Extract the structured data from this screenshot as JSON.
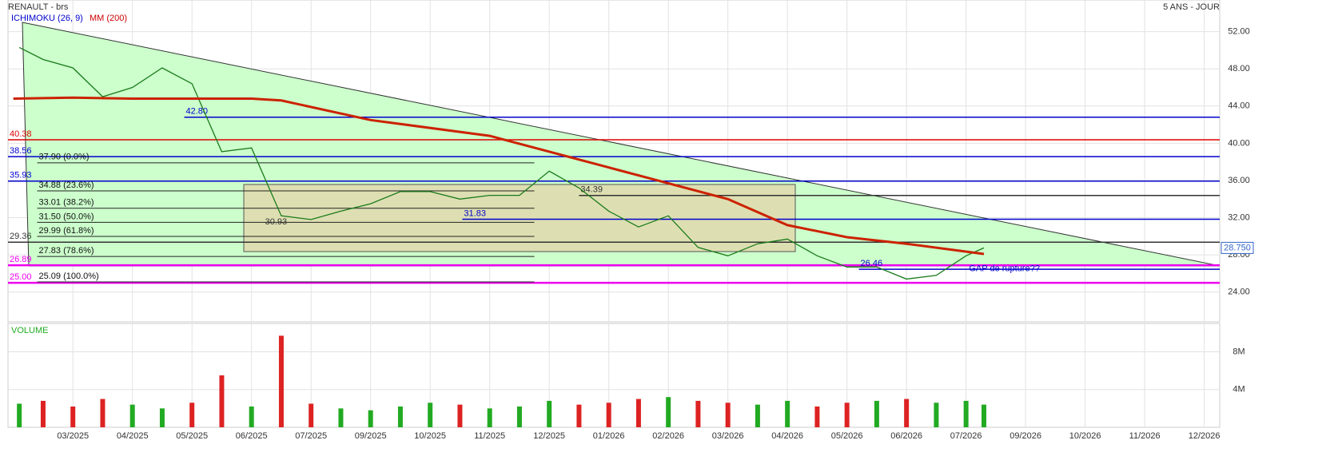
{
  "header": {
    "title": "RENAULT - brs",
    "period": "5 ANS - JOUR"
  },
  "chart_data": [
    {
      "type": "line",
      "indicators": [
        "ICHIMOKU (26, 9)",
        "MM (200)"
      ],
      "xlim": [
        -1.09,
        19.26
      ],
      "xticks": [
        {
          "value": 0,
          "label": "03/2025"
        },
        {
          "value": 1,
          "label": "04/2025"
        },
        {
          "value": 2,
          "label": "05/2025"
        },
        {
          "value": 3,
          "label": "06/2025"
        },
        {
          "value": 4,
          "label": "07/2025"
        },
        {
          "value": 5,
          "label": "09/2025"
        },
        {
          "value": 6,
          "label": "10/2025"
        },
        {
          "value": 7,
          "label": "11/2025"
        },
        {
          "value": 8,
          "label": "12/2025"
        },
        {
          "value": 9,
          "label": "01/2026"
        },
        {
          "value": 10,
          "label": "02/2026"
        },
        {
          "value": 11,
          "label": "03/2026"
        },
        {
          "value": 12,
          "label": "04/2026"
        },
        {
          "value": 13,
          "label": "05/2026"
        },
        {
          "value": 14,
          "label": "06/2026"
        },
        {
          "value": 15,
          "label": "07/2026"
        },
        {
          "value": 16,
          "label": "09/2026"
        },
        {
          "value": 17,
          "label": "10/2026"
        },
        {
          "value": 18,
          "label": "11/2026"
        },
        {
          "value": 19,
          "label": "12/2026"
        }
      ],
      "ylim": [
        20.8,
        55.4
      ],
      "yticks": [
        {
          "value": 24,
          "label": "24.00"
        },
        {
          "value": 28,
          "label": "28.00"
        },
        {
          "value": 32,
          "label": "32.00"
        },
        {
          "value": 36,
          "label": "36.00"
        },
        {
          "value": 40,
          "label": "40.00"
        },
        {
          "value": 44,
          "label": "44.00"
        },
        {
          "value": 48,
          "label": "48.00"
        },
        {
          "value": 52,
          "label": "52.00"
        }
      ],
      "grid": true,
      "series": [
        {
          "name": "RENAULT",
          "color": "#1a7a1a",
          "x": [
            -0.9,
            -0.5,
            0,
            0.5,
            1,
            1.5,
            2,
            2.5,
            3,
            3.5,
            4,
            4.5,
            5,
            5.5,
            6,
            6.5,
            7,
            7.5,
            8,
            8.5,
            9,
            9.5,
            10,
            10.5,
            11,
            11.5,
            12,
            12.5,
            13,
            13.5,
            14,
            14.5,
            15,
            15.3
          ],
          "values": [
            50.3,
            49,
            48.1,
            45,
            46,
            48.1,
            46.4,
            39.1,
            39.5,
            32.2,
            31.8,
            32.7,
            33.5,
            34.8,
            34.8,
            34,
            34.4,
            34.4,
            37,
            35.2,
            32.7,
            31,
            32.2,
            28.8,
            27.9,
            29.2,
            29.7,
            27.9,
            26.7,
            26.7,
            25.4,
            25.8,
            27.9,
            28.75
          ]
        },
        {
          "name": "MM (200)",
          "color": "#cc2200",
          "x": [
            -1,
            0,
            1,
            2,
            3,
            3.5,
            5,
            7,
            9,
            11,
            12,
            13,
            14,
            15.3
          ],
          "values": [
            44.8,
            44.9,
            44.8,
            44.8,
            44.8,
            44.6,
            42.5,
            40.8,
            37.4,
            34,
            31.2,
            29.9,
            29.2,
            28.1
          ]
        }
      ],
      "last_price": {
        "value": 28.75,
        "label": "28.750"
      },
      "levels": [
        {
          "value": 42.8,
          "label": "42.80",
          "color": "#0000cc",
          "x_start": 1.87
        },
        {
          "value": 40.38,
          "label": "40.38",
          "color": "#dd0000"
        },
        {
          "value": 38.56,
          "label": "38.56",
          "color": "#0000cc"
        },
        {
          "value": 35.93,
          "label": "35.93",
          "color": "#0000cc"
        },
        {
          "value": 34.39,
          "label": "34.39",
          "color": "#333333",
          "x_start": 8.5
        },
        {
          "value": 31.83,
          "label": "31.83",
          "color": "#0000cc",
          "x_start": 6.54
        },
        {
          "value": 30.93,
          "label": "30.93",
          "color": "#333333",
          "x_start": 3.2,
          "x_end": 3.2
        },
        {
          "value": 29.36,
          "label": "29.36",
          "color": "#333333"
        },
        {
          "value": 26.89,
          "label": "26.89",
          "color": "#ee00ee"
        },
        {
          "value": 26.46,
          "label": "26.46",
          "color": "#0000cc",
          "x_start": 13.2
        },
        {
          "value": 25,
          "label": "25.00",
          "color": "#ee00ee"
        }
      ],
      "fib": {
        "x_start": -0.6,
        "x_end": 7.75,
        "levels": [
          {
            "value": 37.9,
            "label": "37.90 (0.0%)"
          },
          {
            "value": 34.88,
            "label": "34.88 (23.6%)"
          },
          {
            "value": 33.01,
            "label": "33.01 (38.2%)"
          },
          {
            "value": 31.5,
            "label": "31.50 (50.0%)"
          },
          {
            "value": 29.99,
            "label": "29.99 (61.8%)"
          },
          {
            "value": 27.83,
            "label": "27.83 (78.6%)"
          },
          {
            "value": 25.09,
            "label": "25.09 (100.0%)"
          }
        ]
      },
      "annotations": [
        {
          "text": "GAP de rupture??",
          "x": 15.05,
          "y": 26.5
        }
      ]
    },
    {
      "type": "bar",
      "title": "VOLUME",
      "up_color": "#22aa22",
      "down_color": "#dd2222",
      "xlim": [
        -1.09,
        19.26
      ],
      "ylim": [
        0,
        11000000
      ],
      "yticks": [
        {
          "value": 4000000,
          "label": "4M"
        },
        {
          "value": 8000000,
          "label": "8M"
        }
      ],
      "x": [
        -0.9,
        -0.5,
        0,
        0.5,
        1,
        1.5,
        2,
        2.5,
        3,
        3.5,
        4,
        4.5,
        5,
        5.5,
        6,
        6.5,
        7,
        7.5,
        8,
        8.5,
        9,
        9.5,
        10,
        10.5,
        11,
        11.5,
        12,
        12.5,
        13,
        13.5,
        14,
        14.5,
        15,
        15.3
      ],
      "values": [
        2500000,
        2800000,
        2200000,
        3000000,
        2400000,
        2000000,
        2600000,
        5500000,
        2200000,
        9700000,
        2500000,
        2000000,
        1800000,
        2200000,
        2600000,
        2400000,
        2000000,
        2200000,
        2800000,
        2400000,
        2600000,
        3000000,
        3200000,
        2800000,
        2600000,
        2400000,
        2800000,
        2200000,
        2600000,
        2800000,
        3000000,
        2600000,
        2800000,
        2400000
      ]
    }
  ]
}
